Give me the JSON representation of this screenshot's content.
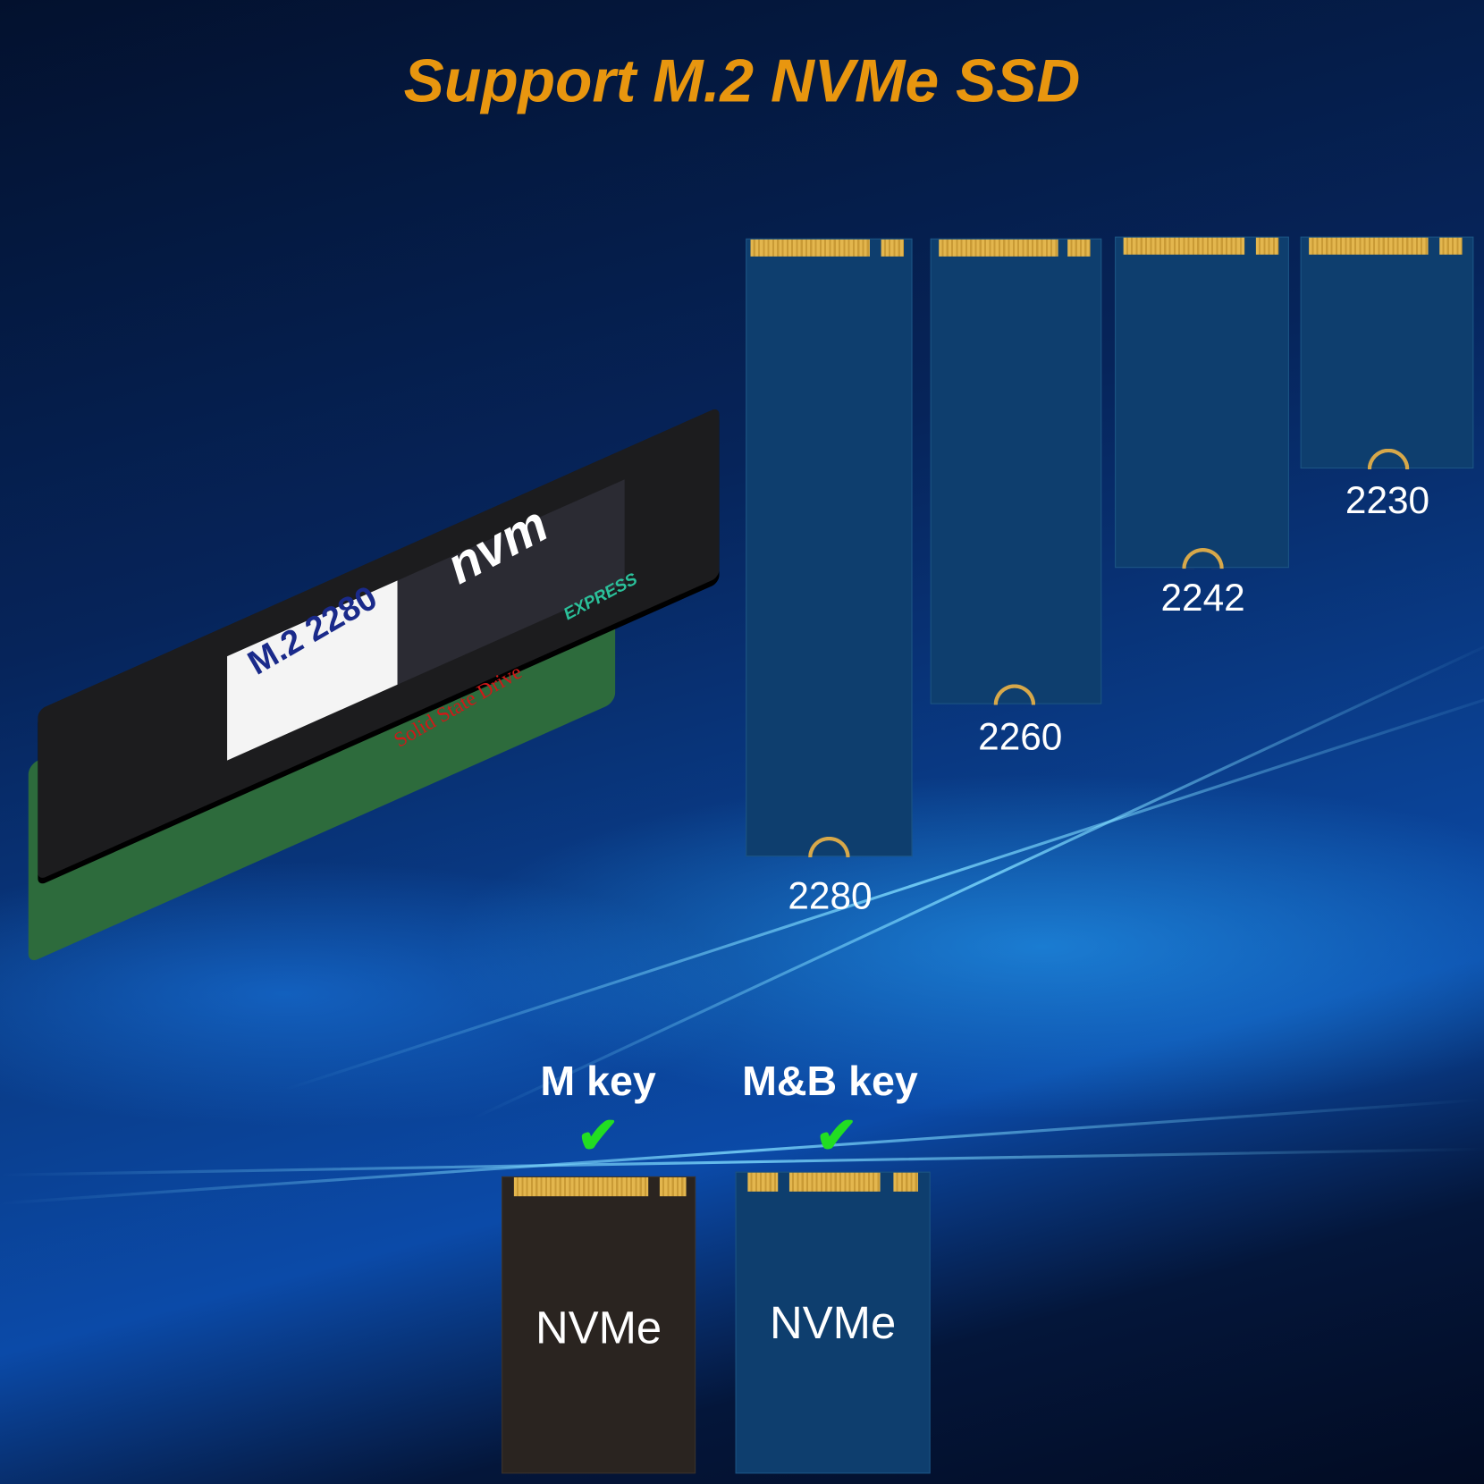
{
  "title": "Support M.2 NVMe SSD",
  "product_photo": {
    "ssd_label": "M.2 2280",
    "ssd_sublabel": "Solid State Drive",
    "logo": "nvm",
    "logo_sub": "EXPRESS"
  },
  "sizes": [
    {
      "label": "2280"
    },
    {
      "label": "2260"
    },
    {
      "label": "2242"
    },
    {
      "label": "2230"
    }
  ],
  "keys": [
    {
      "label": "M key",
      "card_text": "NVMe",
      "card_color": "#2a2420",
      "supported": true
    },
    {
      "label": "M&B key",
      "card_text": "NVMe",
      "card_color": "#0e3e6e",
      "supported": true
    }
  ],
  "colors": {
    "title": "#e8960f",
    "check": "#22dd22",
    "card": "#0e3e6e",
    "gold": "#e3b64e"
  }
}
